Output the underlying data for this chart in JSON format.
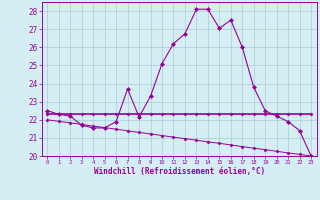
{
  "hours": [
    0,
    1,
    2,
    3,
    4,
    5,
    6,
    7,
    8,
    9,
    10,
    11,
    12,
    13,
    14,
    15,
    16,
    17,
    18,
    19,
    20,
    21,
    22,
    23
  ],
  "windchill": [
    22.5,
    22.3,
    22.2,
    21.7,
    21.55,
    21.55,
    21.9,
    23.7,
    22.15,
    23.3,
    25.1,
    26.2,
    26.75,
    28.1,
    28.1,
    27.05,
    27.5,
    26.0,
    23.8,
    22.5,
    22.2,
    21.9,
    21.4,
    20.0
  ],
  "flat_y": [
    22.3,
    22.3,
    22.3,
    22.3,
    22.3,
    22.3,
    22.3,
    22.3,
    22.3,
    22.3,
    22.3,
    22.3,
    22.3,
    22.3,
    22.3,
    22.3,
    22.3,
    22.3,
    22.3,
    22.3,
    22.3,
    22.3,
    22.3,
    22.3
  ],
  "diagonal": [
    22.0,
    21.91,
    21.83,
    21.74,
    21.65,
    21.57,
    21.48,
    21.39,
    21.3,
    21.22,
    21.13,
    21.04,
    20.96,
    20.87,
    20.78,
    20.7,
    20.61,
    20.52,
    20.43,
    20.35,
    20.26,
    20.17,
    20.09,
    20.0
  ],
  "line_color": "#990099",
  "bg_color": "#d4eef4",
  "grid_color": "#aaccd4",
  "xlabel": "Windchill (Refroidissement éolien,°C)",
  "ylim": [
    20,
    28.5
  ],
  "xlim": [
    -0.5,
    23.5
  ],
  "yticks": [
    20,
    21,
    22,
    23,
    24,
    25,
    26,
    27,
    28
  ]
}
